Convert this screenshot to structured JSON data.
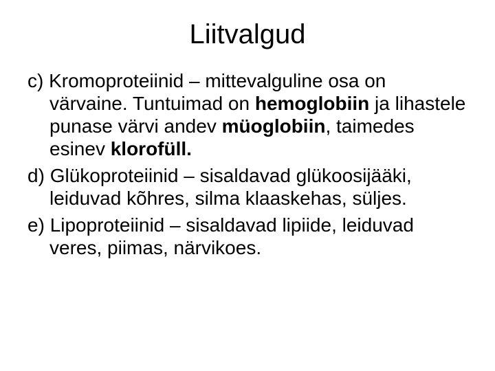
{
  "title": "Liitvalgud",
  "title_fontsize": 40,
  "body_fontsize": 28,
  "colors": {
    "background": "#ffffff",
    "text": "#000000"
  },
  "items": {
    "c": {
      "marker": "c) ",
      "r1": "Kromoproteiinid – mittevalguline osa on värvaine. Tuntuimad on ",
      "b1": "hemoglobiin",
      "r2": " ja lihastele punase värvi andev ",
      "b2": "müoglobiin",
      "r3": ", taimedes esinev ",
      "b3": "klorofüll."
    },
    "d": {
      "marker": "d) ",
      "text": "Glükoproteiinid – sisaldavad glükoosijääki, leiduvad kõhres, silma klaaskehas, süljes."
    },
    "e": {
      "marker": "e) ",
      "text": "Lipoproteiinid – sisaldavad lipiide, leiduvad veres, piimas, närvikoes."
    }
  }
}
